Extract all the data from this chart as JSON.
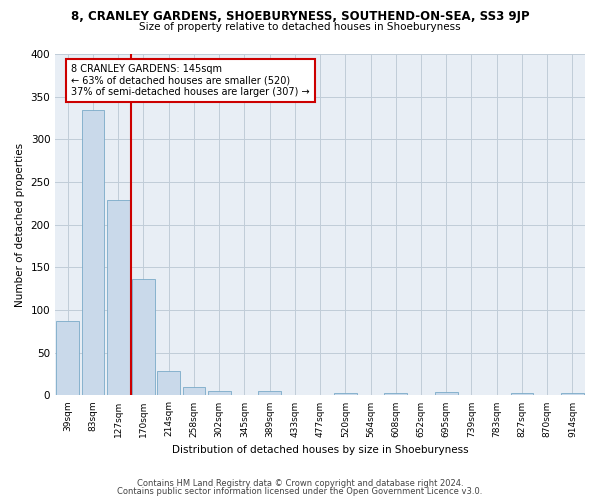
{
  "title_line1": "8, CRANLEY GARDENS, SHOEBURYNESS, SOUTHEND-ON-SEA, SS3 9JP",
  "title_line2": "Size of property relative to detached houses in Shoeburyness",
  "xlabel": "Distribution of detached houses by size in Shoeburyness",
  "ylabel": "Number of detached properties",
  "footnote1": "Contains HM Land Registry data © Crown copyright and database right 2024.",
  "footnote2": "Contains public sector information licensed under the Open Government Licence v3.0.",
  "categories": [
    "39sqm",
    "83sqm",
    "127sqm",
    "170sqm",
    "214sqm",
    "258sqm",
    "302sqm",
    "345sqm",
    "389sqm",
    "433sqm",
    "477sqm",
    "520sqm",
    "564sqm",
    "608sqm",
    "652sqm",
    "695sqm",
    "739sqm",
    "783sqm",
    "827sqm",
    "870sqm",
    "914sqm"
  ],
  "values": [
    87,
    334,
    229,
    136,
    29,
    10,
    5,
    0,
    5,
    0,
    0,
    3,
    0,
    3,
    0,
    4,
    0,
    0,
    3,
    0,
    3
  ],
  "bar_color": "#c9d9ea",
  "bar_edge_color": "#7aaac8",
  "grid_color": "#c0ccd8",
  "bg_color": "#e8eef5",
  "annotation_box_color": "#cc0000",
  "property_line_color": "#cc0000",
  "property_bin_index": 2,
  "annotation_text_line1": "8 CRANLEY GARDENS: 145sqm",
  "annotation_text_line2": "← 63% of detached houses are smaller (520)",
  "annotation_text_line3": "37% of semi-detached houses are larger (307) →",
  "ylim": [
    0,
    400
  ],
  "yticks": [
    0,
    50,
    100,
    150,
    200,
    250,
    300,
    350,
    400
  ]
}
